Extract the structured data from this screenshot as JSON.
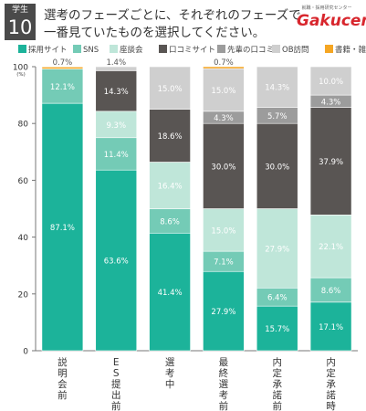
{
  "header": {
    "badge_top": "学生",
    "badge_number": "10",
    "question_line1": "選考のフェーズごとに、それぞれのフェーズで",
    "question_line2": "一番見ていたものを選択してください。",
    "logo_sub": "就職・採用研究センター",
    "logo_main": "Gakucen"
  },
  "colors": [
    "#1cb39a",
    "#74cbb6",
    "#bfe6d9",
    "#595553",
    "#9c9c9c",
    "#cfcfcf",
    "#f5a623"
  ],
  "chart_data": {
    "type": "bar",
    "stacked": true,
    "ylim": [
      0,
      100
    ],
    "yticks": [
      0,
      20,
      40,
      60,
      80,
      100
    ],
    "yunit": "(%)",
    "grid": false,
    "legend_position": "top",
    "categories": [
      "説明会前",
      "ES提出前",
      "選考中",
      "最終選考前",
      "内定承諾前",
      "内定承諾時"
    ],
    "series": [
      {
        "name": "採用サイト",
        "values": [
          87.1,
          63.6,
          41.4,
          27.9,
          15.7,
          17.1
        ]
      },
      {
        "name": "SNS",
        "values": [
          12.1,
          11.4,
          8.6,
          7.1,
          6.4,
          8.6
        ]
      },
      {
        "name": "座談会",
        "values": [
          0,
          9.3,
          16.4,
          15.0,
          27.9,
          22.1
        ]
      },
      {
        "name": "口コミサイト",
        "values": [
          0,
          14.3,
          18.6,
          30.0,
          30.0,
          37.9
        ]
      },
      {
        "name": "先輩の口コミ",
        "values": [
          0,
          0,
          0,
          4.3,
          5.7,
          4.3
        ]
      },
      {
        "name": "OB訪問",
        "values": [
          0,
          1.4,
          15.0,
          15.0,
          14.3,
          10.0
        ]
      },
      {
        "name": "書籍・雑誌",
        "values": [
          0.7,
          0,
          0,
          0.7,
          0,
          0
        ]
      }
    ]
  }
}
